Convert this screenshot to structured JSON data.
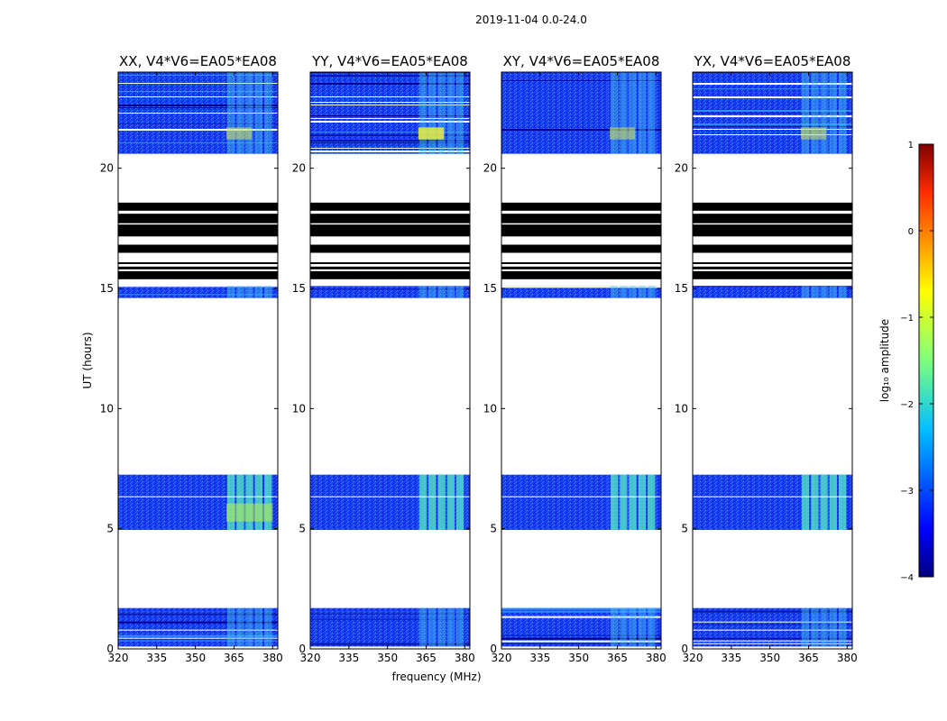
{
  "figure": {
    "suptitle": "2019-11-04 0.0-24.0"
  },
  "chart_data": {
    "type": "heatmap",
    "title": "2019-11-04 0.0-24.0",
    "xlabel": "frequency (MHz)",
    "ylabel": "UT (hours)",
    "xlim": [
      320,
      382
    ],
    "ylim": [
      0,
      24
    ],
    "xticks": [
      320,
      335,
      350,
      365,
      380
    ],
    "yticks": [
      0,
      5,
      10,
      15,
      20
    ],
    "panels": [
      {
        "title": "XX, V4*V6=EA05*EA08",
        "pol": "XX"
      },
      {
        "title": "YY, V4*V6=EA05*EA08",
        "pol": "YY"
      },
      {
        "title": "XY, V4*V6=EA05*EA08",
        "pol": "XY"
      },
      {
        "title": "YX, V4*V6=EA05*EA08",
        "pol": "YX"
      }
    ],
    "data_segments_hours": [
      {
        "start": 0.1,
        "end": 1.7,
        "kind": "data"
      },
      {
        "start": 4.95,
        "end": 7.25,
        "kind": "data"
      },
      {
        "start": 14.6,
        "end": 15.1,
        "kind": "data"
      },
      {
        "start": 20.6,
        "end": 24.0,
        "kind": "data"
      }
    ],
    "flagged_rows_hours": [
      15.55,
      15.85,
      16.05,
      16.65,
      16.75,
      17.2,
      17.4,
      17.6,
      17.75,
      17.9,
      18.05,
      18.3,
      18.4
    ],
    "rfi_band_mhz": [
      362,
      380
    ],
    "colorbar": {
      "label": "log₁₀ amplitude",
      "range": [
        -4,
        1
      ],
      "ticks": [
        "1",
        "0",
        "−1",
        "−2",
        "−3",
        "−4"
      ],
      "colormap": "jet"
    }
  }
}
